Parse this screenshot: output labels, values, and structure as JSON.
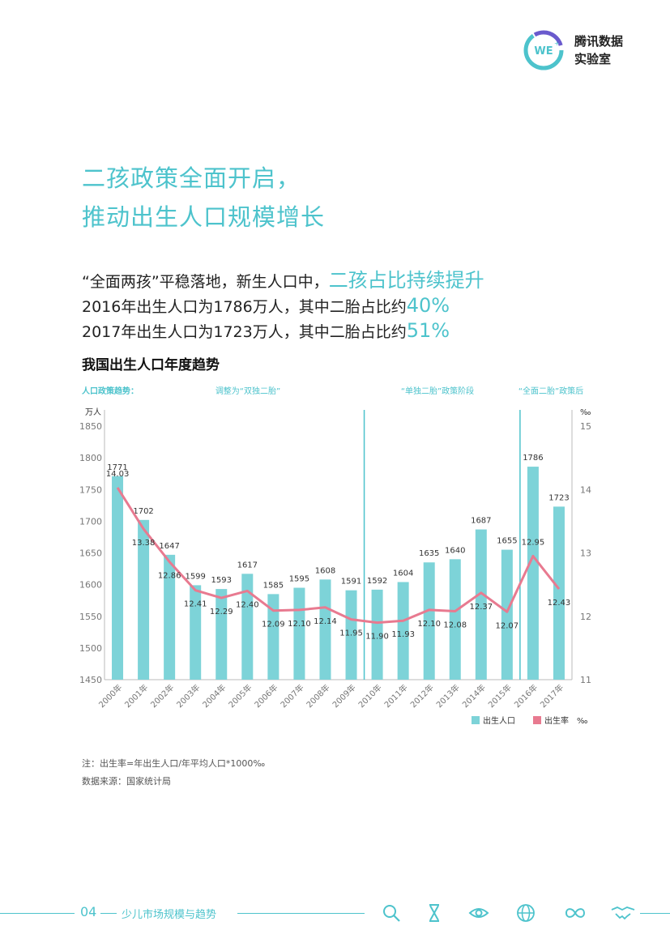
{
  "logo": {
    "line1": "腾讯数据",
    "line2": "实验室",
    "badge": "WE"
  },
  "headline": {
    "line1": "二孩政策全面开启，",
    "line2": "推动出生人口规模增长"
  },
  "summary": {
    "l1_pre": "“全面两孩”平稳落地，新生人口中，",
    "l1_hl": "二孩占比持续提升",
    "l2_pre": "2016年出生人口为1786万人，其中二胎占比约",
    "l2_hl": "40%",
    "l3_pre": "2017年出生人口为1723万人，其中二胎占比约",
    "l3_hl": "51%"
  },
  "chart_title": "我国出生人口年度趋势",
  "notes": {
    "note": "注：出生率=年出生人口/年平均人口*1000‰",
    "source": "数据来源：国家统计局"
  },
  "footer": {
    "page": "04",
    "label": "少儿市场规模与趋势",
    "icons": [
      "search-icon",
      "hourglass-icon",
      "eye-icon",
      "globe-icon",
      "infinity-icon",
      "handshake-icon"
    ]
  },
  "colors": {
    "teal": "#4dc3cc",
    "bar": "#7dd3d8",
    "pink": "#e87a90"
  },
  "chart_data": {
    "type": "bar",
    "categories": [
      "2000年",
      "2001年",
      "2002年",
      "2003年",
      "2004年",
      "2005年",
      "2006年",
      "2007年",
      "2008年",
      "2009年",
      "2010年",
      "2011年",
      "2012年",
      "2013年",
      "2014年",
      "2015年",
      "2016年",
      "2017年"
    ],
    "series": [
      {
        "name": "出生人口",
        "type": "bar",
        "axis": "left",
        "values": [
          1771,
          1702,
          1647,
          1599,
          1593,
          1617,
          1585,
          1595,
          1608,
          1591,
          1592,
          1604,
          1635,
          1640,
          1687,
          1655,
          1786,
          1723
        ]
      },
      {
        "name": "出生率",
        "type": "line",
        "axis": "right",
        "values": [
          14.03,
          13.38,
          12.86,
          12.41,
          12.29,
          12.4,
          12.09,
          12.1,
          12.14,
          11.95,
          11.9,
          11.93,
          12.1,
          12.08,
          12.37,
          12.07,
          12.95,
          12.43
        ]
      }
    ],
    "y_left": {
      "unit": "万人",
      "range": [
        1450,
        1850
      ],
      "ticks": [
        1450,
        1500,
        1550,
        1600,
        1650,
        1700,
        1750,
        1800,
        1850
      ]
    },
    "y_right": {
      "unit": "‰",
      "range": [
        11,
        15
      ],
      "ticks": [
        11,
        12,
        13,
        14,
        15
      ]
    },
    "policy_label": "人口政策趋势：",
    "policy_phases": [
      {
        "label": "调整为“双独二胎”"
      },
      {
        "label": "“单独二胎”政策阶段"
      },
      {
        "label": "“全面二胎”政策后"
      }
    ],
    "legend": [
      {
        "name": "出生人口"
      },
      {
        "name": "出生率",
        "unit": "‰"
      }
    ],
    "legend_position": "bottom-right"
  }
}
